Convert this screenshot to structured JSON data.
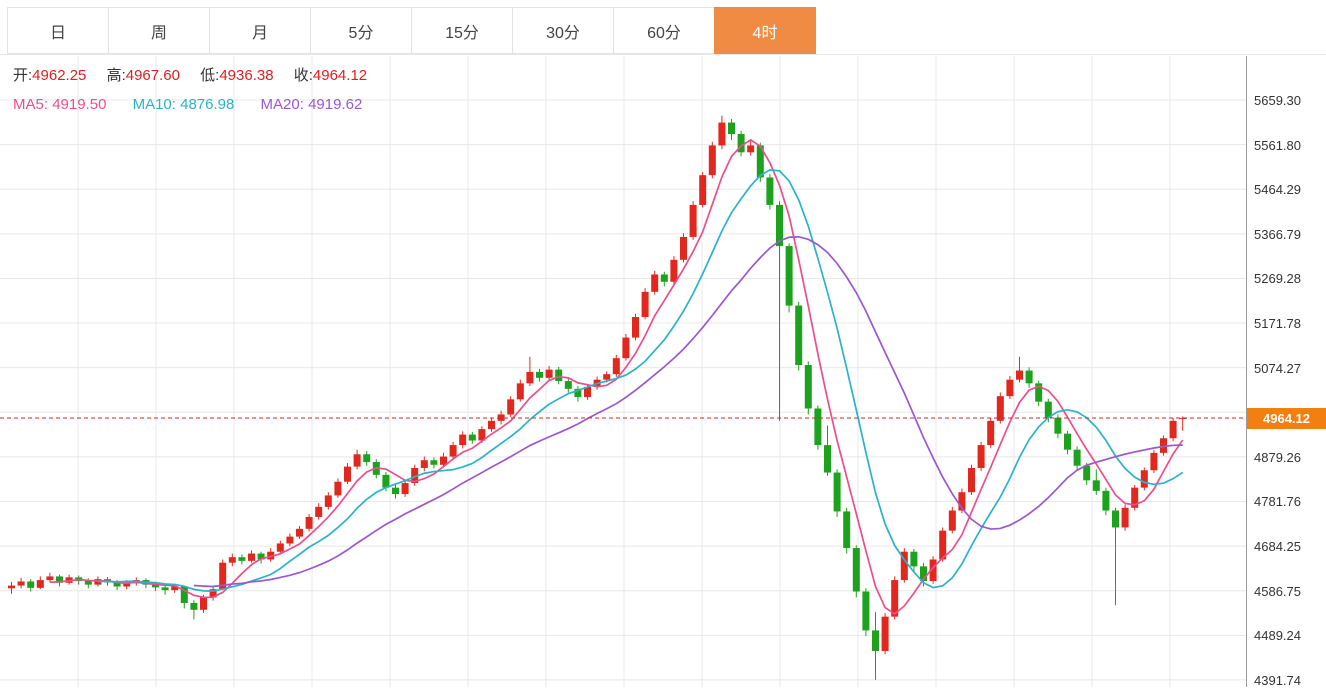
{
  "toolbar": {
    "tabs": [
      {
        "label": "日",
        "name": "tab-day",
        "active": false
      },
      {
        "label": "周",
        "name": "tab-week",
        "active": false
      },
      {
        "label": "月",
        "name": "tab-month",
        "active": false
      },
      {
        "label": "5分",
        "name": "tab-5min",
        "active": false
      },
      {
        "label": "15分",
        "name": "tab-15min",
        "active": false
      },
      {
        "label": "30分",
        "name": "tab-30min",
        "active": false
      },
      {
        "label": "60分",
        "name": "tab-60min",
        "active": false
      },
      {
        "label": "4时",
        "name": "tab-4hour",
        "active": true
      }
    ]
  },
  "quote": {
    "open_label": "开:",
    "open": "4962.25",
    "high_label": "高:",
    "high": "4967.60",
    "low_label": "低:",
    "low": "4936.38",
    "close_label": "收:",
    "close": "4964.12"
  },
  "ma_legend": {
    "ma5_label": "MA5:",
    "ma5": "4919.50",
    "ma10_label": "MA10:",
    "ma10": "4876.98",
    "ma20_label": "MA20:",
    "ma20": "4919.62"
  },
  "axis": {
    "labels": [
      "5659.30",
      "5561.80",
      "5464.29",
      "5366.79",
      "5269.28",
      "5171.78",
      "5074.27",
      "4879.26",
      "4781.76",
      "4684.25",
      "4586.75",
      "4489.24",
      "4391.74"
    ],
    "current": "4964.12"
  },
  "colors": {
    "up": "#e0281e",
    "down": "#1ca21c",
    "ma5": "#ec4e8d",
    "ma10": "#29b3c8",
    "ma20": "#9b57cf",
    "active_tab": "#f08b43",
    "price_badge": "#f28011",
    "price_line": "#e02020",
    "grid": "#e8e8e8"
  },
  "chart_data": {
    "type": "candlestick",
    "timeframe": "4时",
    "current_price": 4964.12,
    "y_top": 5659.3,
    "y_step": 97.505,
    "y_axis_values": [
      5659.3,
      5561.8,
      5464.29,
      5366.79,
      5269.28,
      5171.78,
      5074.27,
      4879.26,
      4781.76,
      4684.25,
      4586.75,
      4489.24,
      4391.74
    ],
    "ma_windows": [
      5,
      10,
      20
    ],
    "moving_averages": {
      "ma5": 4919.5,
      "ma10": 4876.98,
      "ma20": 4919.62
    },
    "candles": [
      [
        4592,
        4606,
        4580,
        4598
      ],
      [
        4598,
        4615,
        4592,
        4607
      ],
      [
        4607,
        4612,
        4585,
        4593
      ],
      [
        4593,
        4618,
        4590,
        4610
      ],
      [
        4610,
        4626,
        4605,
        4618
      ],
      [
        4618,
        4622,
        4596,
        4604
      ],
      [
        4604,
        4622,
        4600,
        4616
      ],
      [
        4616,
        4620,
        4600,
        4608
      ],
      [
        4608,
        4614,
        4592,
        4600
      ],
      [
        4600,
        4618,
        4596,
        4612
      ],
      [
        4612,
        4617,
        4598,
        4605
      ],
      [
        4605,
        4610,
        4588,
        4596
      ],
      [
        4596,
        4610,
        4590,
        4603
      ],
      [
        4603,
        4616,
        4598,
        4610
      ],
      [
        4610,
        4614,
        4592,
        4600
      ],
      [
        4600,
        4606,
        4586,
        4594
      ],
      [
        4594,
        4600,
        4578,
        4588
      ],
      [
        4588,
        4602,
        4582,
        4596
      ],
      [
        4596,
        4598,
        4548,
        4560
      ],
      [
        4560,
        4566,
        4524,
        4545
      ],
      [
        4545,
        4578,
        4538,
        4572
      ],
      [
        4572,
        4598,
        4565,
        4590
      ],
      [
        4590,
        4655,
        4588,
        4648
      ],
      [
        4648,
        4668,
        4640,
        4660
      ],
      [
        4660,
        4666,
        4644,
        4652
      ],
      [
        4652,
        4675,
        4648,
        4668
      ],
      [
        4668,
        4672,
        4646,
        4655
      ],
      [
        4655,
        4680,
        4650,
        4672
      ],
      [
        4672,
        4696,
        4668,
        4690
      ],
      [
        4690,
        4712,
        4684,
        4705
      ],
      [
        4705,
        4728,
        4700,
        4722
      ],
      [
        4722,
        4754,
        4716,
        4748
      ],
      [
        4748,
        4778,
        4742,
        4770
      ],
      [
        4770,
        4802,
        4764,
        4795
      ],
      [
        4795,
        4832,
        4790,
        4825
      ],
      [
        4825,
        4866,
        4820,
        4858
      ],
      [
        4858,
        4895,
        4852,
        4885
      ],
      [
        4885,
        4892,
        4860,
        4868
      ],
      [
        4868,
        4874,
        4832,
        4840
      ],
      [
        4840,
        4846,
        4804,
        4812
      ],
      [
        4812,
        4820,
        4788,
        4798
      ],
      [
        4798,
        4828,
        4792,
        4822
      ],
      [
        4822,
        4862,
        4816,
        4855
      ],
      [
        4855,
        4880,
        4848,
        4872
      ],
      [
        4872,
        4878,
        4854,
        4862
      ],
      [
        4862,
        4888,
        4856,
        4880
      ],
      [
        4880,
        4912,
        4874,
        4905
      ],
      [
        4905,
        4935,
        4898,
        4928
      ],
      [
        4928,
        4934,
        4908,
        4915
      ],
      [
        4915,
        4946,
        4910,
        4940
      ],
      [
        4940,
        4965,
        4934,
        4958
      ],
      [
        4958,
        4980,
        4950,
        4972
      ],
      [
        4972,
        5012,
        4966,
        5005
      ],
      [
        5005,
        5048,
        5000,
        5040
      ],
      [
        5040,
        5098,
        5034,
        5065
      ],
      [
        5065,
        5072,
        5044,
        5052
      ],
      [
        5052,
        5078,
        5046,
        5070
      ],
      [
        5070,
        5076,
        5038,
        5045
      ],
      [
        5045,
        5052,
        5020,
        5028
      ],
      [
        5028,
        5034,
        5000,
        5010
      ],
      [
        5010,
        5038,
        5004,
        5032
      ],
      [
        5032,
        5055,
        5026,
        5048
      ],
      [
        5048,
        5066,
        5042,
        5060
      ],
      [
        5060,
        5102,
        5054,
        5095
      ],
      [
        5095,
        5148,
        5090,
        5140
      ],
      [
        5140,
        5192,
        5134,
        5185
      ],
      [
        5185,
        5248,
        5180,
        5240
      ],
      [
        5240,
        5286,
        5234,
        5278
      ],
      [
        5278,
        5284,
        5252,
        5262
      ],
      [
        5262,
        5318,
        5256,
        5310
      ],
      [
        5310,
        5368,
        5304,
        5360
      ],
      [
        5360,
        5438,
        5354,
        5430
      ],
      [
        5430,
        5502,
        5424,
        5495
      ],
      [
        5495,
        5568,
        5488,
        5560
      ],
      [
        5560,
        5625,
        5552,
        5610
      ],
      [
        5610,
        5618,
        5572,
        5585
      ],
      [
        5585,
        5592,
        5536,
        5545
      ],
      [
        5545,
        5570,
        5538,
        5560
      ],
      [
        5560,
        5566,
        5480,
        5490
      ],
      [
        5490,
        5498,
        5420,
        5430
      ],
      [
        5430,
        5438,
        4958,
        5340
      ],
      [
        5340,
        5346,
        5195,
        5210
      ],
      [
        5210,
        5218,
        5068,
        5080
      ],
      [
        5080,
        5088,
        4972,
        4985
      ],
      [
        4985,
        4992,
        4895,
        4905
      ],
      [
        4905,
        4948,
        4838,
        4845
      ],
      [
        4845,
        4852,
        4748,
        4760
      ],
      [
        4760,
        4768,
        4668,
        4680
      ],
      [
        4680,
        4686,
        4572,
        4585
      ],
      [
        4585,
        4592,
        4488,
        4500
      ],
      [
        4500,
        4540,
        4392,
        4455
      ],
      [
        4455,
        4538,
        4448,
        4530
      ],
      [
        4530,
        4618,
        4524,
        4610
      ],
      [
        4610,
        4680,
        4604,
        4672
      ],
      [
        4672,
        4678,
        4630,
        4640
      ],
      [
        4640,
        4648,
        4596,
        4608
      ],
      [
        4608,
        4662,
        4602,
        4655
      ],
      [
        4655,
        4725,
        4650,
        4718
      ],
      [
        4718,
        4770,
        4712,
        4762
      ],
      [
        4762,
        4810,
        4756,
        4802
      ],
      [
        4802,
        4862,
        4796,
        4855
      ],
      [
        4855,
        4912,
        4848,
        4905
      ],
      [
        4905,
        4965,
        4898,
        4958
      ],
      [
        4958,
        5020,
        4952,
        5012
      ],
      [
        5012,
        5056,
        5006,
        5048
      ],
      [
        5048,
        5098,
        5042,
        5068
      ],
      [
        5068,
        5075,
        5030,
        5040
      ],
      [
        5040,
        5046,
        4990,
        5000
      ],
      [
        5000,
        5006,
        4955,
        4965
      ],
      [
        4965,
        4972,
        4920,
        4930
      ],
      [
        4930,
        4936,
        4885,
        4895
      ],
      [
        4895,
        4902,
        4850,
        4860
      ],
      [
        4860,
        4866,
        4818,
        4828
      ],
      [
        4828,
        4852,
        4796,
        4805
      ],
      [
        4805,
        4812,
        4752,
        4762
      ],
      [
        4762,
        4768,
        4555,
        4725
      ],
      [
        4725,
        4775,
        4718,
        4768
      ],
      [
        4768,
        4818,
        4762,
        4812
      ],
      [
        4812,
        4856,
        4806,
        4850
      ],
      [
        4850,
        4894,
        4844,
        4888
      ],
      [
        4888,
        4926,
        4882,
        4920
      ],
      [
        4920,
        4964,
        4914,
        4958
      ],
      [
        4962.25,
        4967.6,
        4936.38,
        4964.12
      ]
    ]
  }
}
